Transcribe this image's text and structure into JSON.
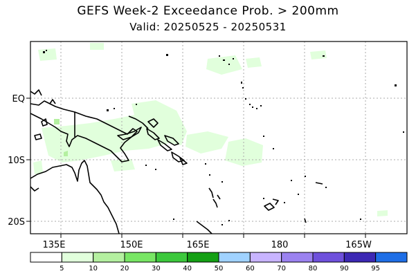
{
  "title": "GEFS Week-2 Exceedance Prob. > 200mm",
  "subtitle": "Valid: 20250525 - 20250531",
  "lat_labels": [
    "EQ",
    "10S",
    "20S"
  ],
  "lon_labels": [
    "135E",
    "150E",
    "165E",
    "180",
    "165W"
  ],
  "colorbar": {
    "labels": [
      "5",
      "10",
      "20",
      "30",
      "40",
      "50",
      "60",
      "70",
      "80",
      "90",
      "95"
    ],
    "colors": [
      "#ffffff",
      "#e1ffdc",
      "#b4f0a0",
      "#78e664",
      "#3cc83c",
      "#14a014",
      "#a0d2ff",
      "#c8b4ff",
      "#9b82f0",
      "#6e50dc",
      "#3c28b4",
      "#1e6ee6"
    ]
  },
  "shading_color": "#e1ffdc",
  "shading_color_dark": "#b4f0a0"
}
